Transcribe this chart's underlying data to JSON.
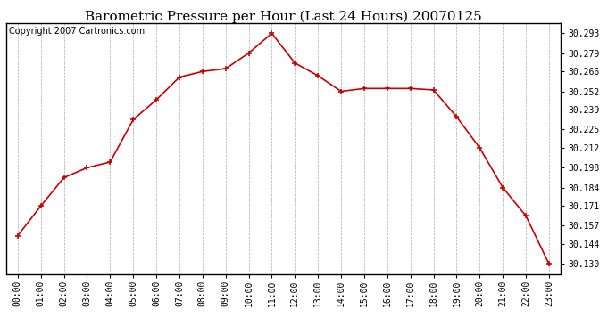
{
  "title": "Barometric Pressure per Hour (Last 24 Hours) 20070125",
  "copyright_text": "Copyright 2007 Cartronics.com",
  "hours": [
    "00:00",
    "01:00",
    "02:00",
    "03:00",
    "04:00",
    "05:00",
    "06:00",
    "07:00",
    "08:00",
    "09:00",
    "10:00",
    "11:00",
    "12:00",
    "13:00",
    "14:00",
    "15:00",
    "16:00",
    "17:00",
    "18:00",
    "19:00",
    "20:00",
    "21:00",
    "22:00",
    "23:00"
  ],
  "pressure": [
    30.15,
    30.171,
    30.191,
    30.198,
    30.202,
    30.232,
    30.246,
    30.262,
    30.266,
    30.268,
    30.279,
    30.293,
    30.272,
    30.263,
    30.252,
    30.254,
    30.254,
    30.254,
    30.253,
    30.234,
    30.212,
    30.184,
    30.164,
    30.13
  ],
  "line_color": "#cc0000",
  "marker": "+",
  "marker_size": 5,
  "marker_linewidth": 1.2,
  "line_width": 1.2,
  "bg_color": "#ffffff",
  "plot_bg_color": "#ffffff",
  "grid_color": "#aaaaaa",
  "grid_linestyle": "--",
  "grid_linewidth": 0.5,
  "title_fontsize": 11,
  "copyright_fontsize": 7,
  "tick_fontsize": 7,
  "ylabel_right_values": [
    30.293,
    30.279,
    30.266,
    30.252,
    30.239,
    30.225,
    30.212,
    30.198,
    30.184,
    30.171,
    30.157,
    30.144,
    30.13
  ],
  "ylim_min": 30.123,
  "ylim_max": 30.3
}
